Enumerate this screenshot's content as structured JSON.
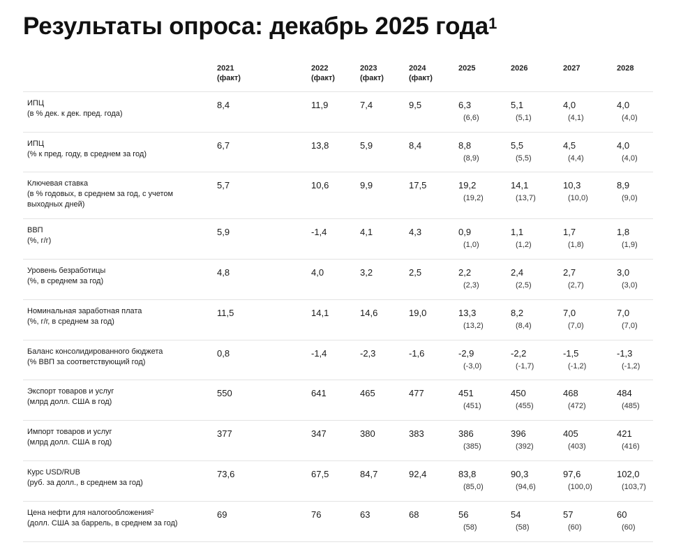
{
  "title": {
    "text": "Результаты опроса: декабрь 2025 года",
    "footnote": "1"
  },
  "columns": [
    {
      "year": "2021",
      "note": "(факт)"
    },
    {
      "year": "2022",
      "note": "(факт)"
    },
    {
      "year": "2023",
      "note": "(факт)"
    },
    {
      "year": "2024",
      "note": "(факт)"
    },
    {
      "year": "2025",
      "note": ""
    },
    {
      "year": "2026",
      "note": ""
    },
    {
      "year": "2027",
      "note": ""
    },
    {
      "year": "2028",
      "note": ""
    }
  ],
  "rows": [
    {
      "name": "ИПЦ",
      "unit": "(в % дек. к дек. пред. года)",
      "footnote": "",
      "values": [
        "8,4",
        "11,9",
        "7,4",
        "9,5",
        "6,3",
        "5,1",
        "4,0",
        "4,0"
      ],
      "prev": [
        "(6,6)",
        "(5,1)",
        "(4,1)",
        "(4,0)"
      ]
    },
    {
      "name": "ИПЦ",
      "unit": "(% к пред. году, в среднем за год)",
      "footnote": "",
      "values": [
        "6,7",
        "13,8",
        "5,9",
        "8,4",
        "8,8",
        "5,5",
        "4,5",
        "4,0"
      ],
      "prev": [
        "(8,9)",
        "(5,5)",
        "(4,4)",
        "(4,0)"
      ]
    },
    {
      "name": "Ключевая ставка",
      "unit": "(в % годовых, в среднем за год, с учетом выходных дней)",
      "footnote": "",
      "values": [
        "5,7",
        "10,6",
        "9,9",
        "17,5",
        "19,2",
        "14,1",
        "10,3",
        "8,9"
      ],
      "prev": [
        "(19,2)",
        "(13,7)",
        "(10,0)",
        "(9,0)"
      ]
    },
    {
      "name": "ВВП",
      "unit": "(%, г/г)",
      "footnote": "",
      "values": [
        "5,9",
        "-1,4",
        "4,1",
        "4,3",
        "0,9",
        "1,1",
        "1,7",
        "1,8"
      ],
      "prev": [
        "(1,0)",
        "(1,2)",
        "(1,8)",
        "(1,9)"
      ]
    },
    {
      "name": "Уровень безработицы",
      "unit": "(%, в среднем за год)",
      "footnote": "",
      "values": [
        "4,8",
        "4,0",
        "3,2",
        "2,5",
        "2,2",
        "2,4",
        "2,7",
        "3,0"
      ],
      "prev": [
        "(2,3)",
        "(2,5)",
        "(2,7)",
        "(3,0)"
      ]
    },
    {
      "name": "Номинальная заработная плата",
      "unit": "(%, г/г, в среднем за год)",
      "footnote": "",
      "values": [
        "11,5",
        "14,1",
        "14,6",
        "19,0",
        "13,3",
        "8,2",
        "7,0",
        "7,0"
      ],
      "prev": [
        "(13,2)",
        "(8,4)",
        "(7,0)",
        "(7,0)"
      ]
    },
    {
      "name": "Баланс консолидированного бюджета",
      "unit": "(% ВВП за соответствующий год)",
      "footnote": "",
      "values": [
        "0,8",
        "-1,4",
        "-2,3",
        "-1,6",
        "-2,9",
        "-2,2",
        "-1,5",
        "-1,3"
      ],
      "prev": [
        "(-3,0)",
        "(-1,7)",
        "(-1,2)",
        "(-1,2)"
      ]
    },
    {
      "name": "Экспорт товаров и услуг",
      "unit": "(млрд долл. США в год)",
      "footnote": "",
      "values": [
        "550",
        "641",
        "465",
        "477",
        "451",
        "450",
        "468",
        "484"
      ],
      "prev": [
        "(451)",
        "(455)",
        "(472)",
        "(485)"
      ]
    },
    {
      "name": "Импорт товаров и услуг",
      "unit": "(млрд долл. США в год)",
      "footnote": "",
      "values": [
        "377",
        "347",
        "380",
        "383",
        "386",
        "396",
        "405",
        "421"
      ],
      "prev": [
        "(385)",
        "(392)",
        "(403)",
        "(416)"
      ]
    },
    {
      "name": "Курс USD/RUB",
      "unit": "(руб. за долл., в среднем за год)",
      "footnote": "",
      "values": [
        "73,6",
        "67,5",
        "84,7",
        "92,4",
        "83,8",
        "90,3",
        "97,6",
        "102,0"
      ],
      "prev": [
        "(85,0)",
        "(94,6)",
        "(100,0)",
        "(103,7)"
      ]
    },
    {
      "name": "Цена нефти для налогообложения",
      "unit": "(долл. США за баррель, в среднем за год)",
      "footnote": "2",
      "values": [
        "69",
        "76",
        "63",
        "68",
        "56",
        "54",
        "57",
        "60"
      ],
      "prev": [
        "(58)",
        "(58)",
        "(60)",
        "(60)"
      ]
    }
  ]
}
